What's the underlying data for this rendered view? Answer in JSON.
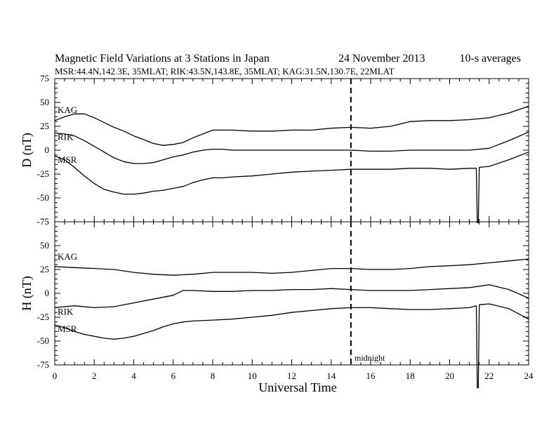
{
  "header": {
    "title": "Magnetic Field Variations at 3 Stations in Japan",
    "date": "24 November 2013",
    "averages": "10-s averages",
    "subtitle": "MSR:44.4N,142.3E, 35MLAT;  RIK:43.5N,143.8E, 35MLAT;  KAG:31.5N,130.7E, 22MLAT"
  },
  "chart_data": [
    {
      "type": "line",
      "panel": "top",
      "ylabel": "D (nT)",
      "xlabel": "",
      "xlim": [
        0,
        24
      ],
      "ylim": [
        -75,
        75
      ],
      "yticks": [
        "75",
        "50",
        "25",
        "0",
        "-25",
        "-50",
        "-75"
      ],
      "series": [
        {
          "name": "KAG",
          "x": [
            0,
            0.5,
            1,
            1.5,
            2,
            2.5,
            3,
            3.5,
            4,
            4.5,
            5,
            5.5,
            6,
            6.5,
            7,
            7.5,
            8,
            8.5,
            9,
            10,
            11,
            12,
            13,
            14,
            15,
            16,
            17,
            18,
            19,
            20,
            21,
            22,
            23,
            24
          ],
          "values": [
            31,
            35,
            38,
            38,
            34,
            29,
            24,
            20,
            15,
            11,
            7,
            5,
            6,
            8,
            13,
            17,
            21,
            21,
            21,
            20,
            20,
            21,
            21,
            23,
            24,
            23,
            25,
            30,
            31,
            31,
            32,
            34,
            39,
            46
          ]
        },
        {
          "name": "RIK",
          "x": [
            0,
            0.5,
            1,
            1.5,
            2,
            2.5,
            3,
            3.5,
            4,
            4.5,
            5,
            5.5,
            6,
            6.5,
            7,
            7.5,
            8,
            8.5,
            9,
            10,
            11,
            12,
            13,
            14,
            15,
            16,
            17,
            18,
            19,
            20,
            21,
            22,
            23,
            24
          ],
          "values": [
            18,
            17,
            15,
            10,
            4,
            -2,
            -8,
            -12,
            -14,
            -14,
            -13,
            -10,
            -7,
            -5,
            -2,
            0,
            1,
            1,
            0,
            0,
            0,
            0,
            0,
            0,
            0,
            -1,
            -1,
            0,
            0,
            0,
            0,
            2,
            10,
            19
          ]
        },
        {
          "name": "MSR",
          "x": [
            0,
            0.5,
            1,
            1.5,
            2,
            2.5,
            3,
            3.5,
            4,
            4.5,
            5,
            5.5,
            6,
            6.5,
            7,
            7.5,
            8,
            8.5,
            9,
            10,
            11,
            12,
            13,
            14,
            15,
            16,
            17,
            18,
            19,
            20,
            21,
            21.35,
            21.4,
            21.45,
            21.5,
            22,
            23,
            24
          ],
          "values": [
            -6,
            -10,
            -18,
            -27,
            -35,
            -41,
            -44,
            -46,
            -46,
            -45,
            -43,
            -42,
            -40,
            -38,
            -34,
            -31,
            -29,
            -29,
            -28,
            -27,
            -25,
            -23,
            -22,
            -21,
            -20,
            -20,
            -20,
            -19,
            -19,
            -20,
            -19,
            -19,
            -76,
            -76,
            -18,
            -17,
            -10,
            -2
          ]
        }
      ]
    },
    {
      "type": "line",
      "panel": "bottom",
      "ylabel": "H (nT)",
      "xlabel": "Universal Time",
      "xlim": [
        0,
        24
      ],
      "ylim": [
        -75,
        75
      ],
      "xticks": [
        "0",
        "2",
        "4",
        "6",
        "8",
        "10",
        "12",
        "14",
        "16",
        "18",
        "20",
        "22",
        "24"
      ],
      "yticks": [
        "75",
        "50",
        "25",
        "0",
        "-25",
        "-50",
        "-75"
      ],
      "annotation": "midnight",
      "midnight_x": 15,
      "series": [
        {
          "name": "KAG",
          "x": [
            0,
            1,
            2,
            3,
            4,
            5,
            6,
            7,
            8,
            9,
            10,
            11,
            12,
            13,
            14,
            15,
            16,
            17,
            18,
            19,
            20,
            21,
            22,
            23,
            24
          ],
          "values": [
            28,
            27,
            26,
            25,
            22,
            20,
            19,
            20,
            22,
            22,
            22,
            21,
            22,
            24,
            26,
            26,
            25,
            25,
            26,
            28,
            29,
            30,
            32,
            34,
            36
          ]
        },
        {
          "name": "RIK",
          "x": [
            0,
            1,
            2,
            3,
            4,
            5,
            6,
            6.5,
            7,
            8,
            9,
            10,
            11,
            12,
            13,
            14,
            15,
            16,
            17,
            18,
            19,
            20,
            21,
            22,
            23,
            24
          ],
          "values": [
            -15,
            -13,
            -15,
            -14,
            -10,
            -6,
            -2,
            3,
            3,
            2,
            2,
            3,
            3,
            4,
            4,
            5,
            4,
            3,
            3,
            3,
            4,
            5,
            6,
            9,
            4,
            -5
          ]
        },
        {
          "name": "MSR",
          "x": [
            0,
            0.5,
            1,
            1.5,
            2,
            2.5,
            3,
            3.5,
            4,
            4.5,
            5,
            5.5,
            6,
            6.5,
            7,
            8,
            9,
            10,
            11,
            12,
            13,
            14,
            15,
            16,
            17,
            18,
            19,
            20,
            21,
            21.35,
            21.4,
            21.45,
            21.5,
            22,
            23,
            24
          ],
          "values": [
            -33,
            -36,
            -40,
            -43,
            -45,
            -47,
            -48,
            -47,
            -45,
            -42,
            -39,
            -35,
            -32,
            -30,
            -29,
            -28,
            -27,
            -25,
            -23,
            -20,
            -18,
            -16,
            -15,
            -15,
            -16,
            -17,
            -17,
            -16,
            -15,
            -13,
            -99,
            -99,
            -12,
            -11,
            -16,
            -27
          ]
        }
      ]
    }
  ]
}
